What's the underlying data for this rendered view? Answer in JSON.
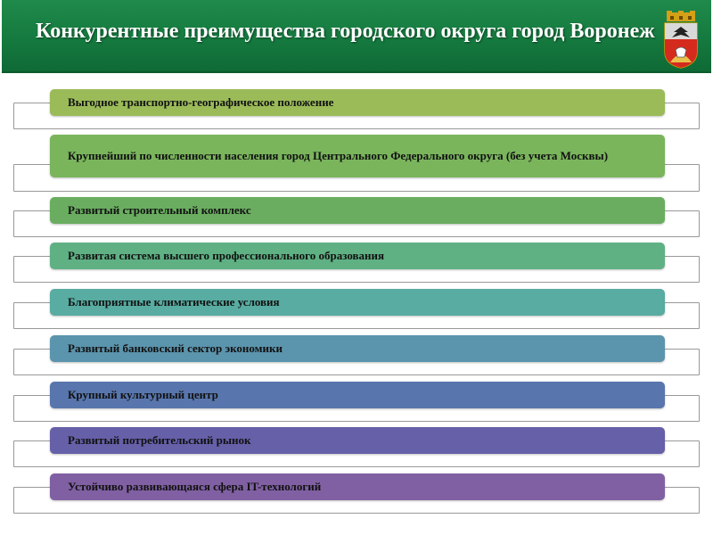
{
  "header": {
    "title": "Конкурентные преимущества городского округа город Воронеж"
  },
  "items": [
    {
      "label": "Выгодное транспортно-географическое положение",
      "color": "#9bbb59"
    },
    {
      "label": "Крупнейший по численности населения город Центрального Федерального округа (без учета Москвы)",
      "color": "#7ab55c"
    },
    {
      "label": "Развитый строительный комплекс",
      "color": "#6aad60"
    },
    {
      "label": "Развитая система высшего профессионального образования",
      "color": "#5fb184"
    },
    {
      "label": "Благоприятные климатические условия",
      "color": "#58aca2"
    },
    {
      "label": "Развитый банковский сектор экономики",
      "color": "#5b94ad"
    },
    {
      "label": "Крупный культурный центр",
      "color": "#5876ad"
    },
    {
      "label": "Развитый потребительский рынок",
      "color": "#6660a9"
    },
    {
      "label": "Устойчиво развивающаяся сфера IT-технологий",
      "color": "#8060a3"
    }
  ]
}
